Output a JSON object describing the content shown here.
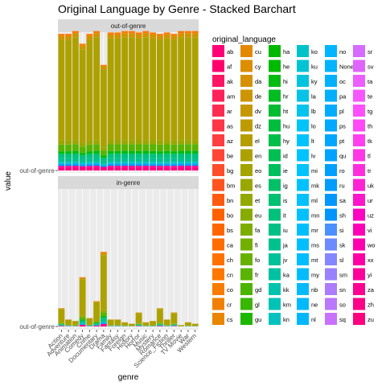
{
  "chart_data": {
    "type": "bar",
    "stacked": true,
    "title": "Original Language by Genre - Stacked Barchart",
    "xlabel": "genre",
    "ylabel": "value",
    "y_tick_label": "out-of-genre",
    "facets": [
      "out-of-genre",
      "in-genre"
    ],
    "categories": [
      "Action",
      "Adventure",
      "Animation",
      "Comedy",
      "Crime",
      "Documentary",
      "Drama",
      "Family",
      "Fantasy",
      "Foreign",
      "History",
      "Horror",
      "Music",
      "Mystery",
      "Romance",
      "Science_Fiction",
      "Thriller",
      "TV_Movie",
      "War",
      "Western"
    ],
    "axis_labels_shown": [
      "Action",
      "Adventure",
      "Animation",
      "Comedy",
      "Crime",
      "Documentary",
      "Drama",
      "Family",
      "Fantasy",
      "Foreign",
      "History",
      "Horror",
      "Music",
      "Mystery",
      "Romance",
      "Science_Fiction",
      "Thriller",
      "TV Movie",
      "War",
      "Western"
    ],
    "out_of_genre_totals": [
      0.97,
      0.97,
      0.99,
      0.9,
      0.97,
      0.99,
      0.75,
      0.98,
      0.98,
      0.99,
      0.99,
      0.98,
      0.99,
      0.98,
      0.97,
      0.98,
      0.97,
      0.99,
      0.99,
      0.99
    ],
    "in_genre_totals": [
      0.13,
      0.05,
      0.04,
      0.35,
      0.06,
      0.18,
      0.53,
      0.05,
      0.05,
      0.03,
      0.02,
      0.1,
      0.03,
      0.04,
      0.13,
      0.05,
      0.1,
      0.01,
      0.03,
      0.02
    ],
    "stack_shares": {
      "en": 0.76,
      "fr": 0.05,
      "es": 0.03,
      "de": 0.03,
      "it": 0.03,
      "ja": 0.03,
      "hi": 0.02,
      "ko": 0.015,
      "zh": 0.015,
      "ru": 0.015,
      "cn": 0.015,
      "other": 0.02
    },
    "legend": {
      "title": "original_language",
      "entries": [
        "ab",
        "af",
        "ak",
        "am",
        "ar",
        "as",
        "az",
        "be",
        "bg",
        "bm",
        "bn",
        "bo",
        "bs",
        "ca",
        "ch",
        "cn",
        "co",
        "cr",
        "cs",
        "cu",
        "cy",
        "da",
        "de",
        "dv",
        "dz",
        "el",
        "en",
        "eo",
        "es",
        "et",
        "eu",
        "fa",
        "fi",
        "fo",
        "fr",
        "gd",
        "gl",
        "gu",
        "ha",
        "he",
        "hi",
        "hr",
        "ht",
        "hu",
        "hy",
        "id",
        "ie",
        "ig",
        "is",
        "it",
        "iu",
        "ja",
        "jv",
        "ka",
        "kk",
        "km",
        "kn",
        "ko",
        "ku",
        "ky",
        "la",
        "lb",
        "lo",
        "lt",
        "lv",
        "mi",
        "mk",
        "ml",
        "mn",
        "mr",
        "ms",
        "mt",
        "my",
        "nb",
        "ne",
        "nl",
        "no",
        "None",
        "oc",
        "pa",
        "pl",
        "ps",
        "pt",
        "qu",
        "ro",
        "ru",
        "sa",
        "sh",
        "si",
        "sk",
        "sl",
        "sm",
        "sn",
        "so",
        "sq",
        "sr",
        "sv",
        "ta",
        "te",
        "tg",
        "th",
        "tk",
        "tl",
        "tr",
        "uk",
        "ur",
        "uz",
        "vi",
        "wo",
        "xx",
        "yi",
        "za",
        "zh",
        "zu"
      ],
      "placement": "right",
      "columns": 7,
      "rows_per_column": 19
    },
    "grid": true
  }
}
